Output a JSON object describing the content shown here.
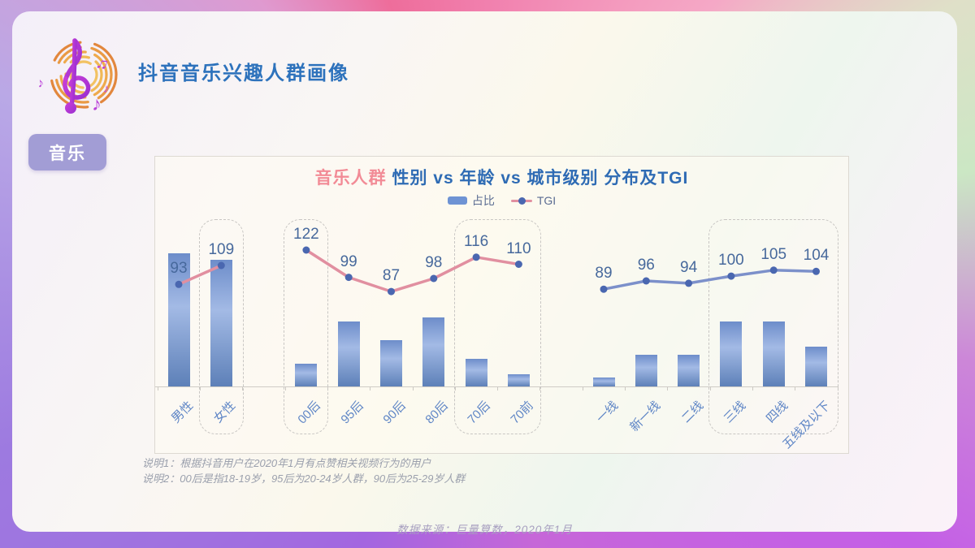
{
  "header": {
    "title": "抖音音乐兴趣人群画像"
  },
  "tab": {
    "label": "音乐"
  },
  "chart": {
    "title_highlight": "音乐人群",
    "title_rest": " 性别 vs 年龄 vs 城市级别 分布及TGI",
    "legend": [
      {
        "label": "占比",
        "type": "bar"
      },
      {
        "label": "TGI",
        "type": "line"
      }
    ]
  },
  "chart_data": {
    "type": "bar+line",
    "title": "音乐人群 性别 vs 年龄 vs 城市级别 分布及TGI",
    "bar_series_name": "占比",
    "line_series_name": "TGI",
    "bar_axis": "hidden (no numeric scale shown; bar values estimated as % of tallest bar)",
    "groups": [
      {
        "name": "性别",
        "line_color_key": "line_pink",
        "categories": [
          "男性",
          "女性"
        ],
        "share_rel_est": [
          100,
          95
        ],
        "tgi": [
          93,
          109
        ],
        "highlight_boxes": [
          [
            1,
            1
          ]
        ]
      },
      {
        "name": "年龄",
        "line_color_key": "line_pink",
        "categories": [
          "00后",
          "95后",
          "90后",
          "80后",
          "70后",
          "70前"
        ],
        "share_rel_est": [
          17,
          49,
          35,
          52,
          21,
          9
        ],
        "tgi": [
          122,
          99,
          87,
          98,
          116,
          110
        ],
        "highlight_boxes": [
          [
            0,
            0
          ],
          [
            4,
            5
          ]
        ]
      },
      {
        "name": "城市级别",
        "line_color_key": "line_blue",
        "categories": [
          "一线",
          "新一线",
          "二线",
          "三线",
          "四线",
          "五线及以下"
        ],
        "share_rel_est": [
          7,
          24,
          24,
          49,
          49,
          30
        ],
        "tgi": [
          89,
          96,
          94,
          100,
          105,
          104
        ],
        "highlight_boxes": [
          [
            3,
            5
          ]
        ]
      }
    ]
  },
  "colors": {
    "header_blue": "#2d72bc",
    "title_blue": "#2e6bb4",
    "highlight_pink": "#f28b96",
    "tab_bg": "#a29dd5",
    "bar_top": "#6d8dca",
    "bar_mid": "#a3bae5",
    "bar_bottom": "#5d80b8",
    "line_pink": "#e18fa0",
    "line_blue": "#7c90ca",
    "dot": "#4a67b0"
  },
  "footer": {
    "note1": "说明1：根据抖音用户在2020年1月有点赞相关视频行为的用户",
    "note2": "说明2：00后是指18-19岁，95后为20-24岁人群，90后为25-29岁人群",
    "source": "数据来源：巨量算数，2020年1月"
  }
}
